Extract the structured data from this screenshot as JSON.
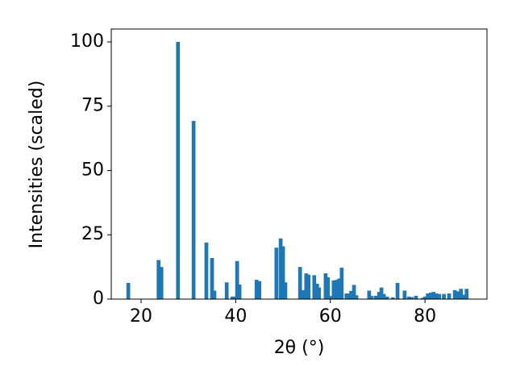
{
  "chart_data": {
    "type": "bar",
    "x_label": "2θ (°)",
    "y_label": "Intensities (scaled)",
    "color": "#1f77b4",
    "x": [
      17.3,
      23.7,
      24.3,
      27.8,
      31.1,
      33.8,
      35.0,
      35.5,
      38.1,
      39.3,
      39.9,
      40.3,
      40.8,
      44.4,
      45.0,
      48.6,
      49.5,
      50.0,
      50.5,
      53.6,
      54.4,
      54.9,
      55.4,
      56.6,
      57.2,
      57.6,
      59.0,
      59.5,
      60.2,
      60.7,
      61.4,
      61.9,
      62.4,
      63.4,
      63.9,
      64.4,
      65.0,
      65.5,
      68.2,
      68.7,
      69.6,
      70.3,
      70.8,
      71.3,
      72.0,
      73.2,
      74.2,
      75.7,
      76.6,
      77.2,
      78.1,
      79.5,
      80.0,
      80.6,
      81.2,
      81.8,
      82.4,
      83.0,
      84.0,
      85.1,
      86.3,
      86.9,
      87.6,
      88.2,
      88.8
    ],
    "values": [
      6.3,
      15.2,
      12.5,
      100,
      69.3,
      22,
      16,
      3.3,
      6.5,
      1,
      1,
      14.8,
      5.7,
      7.5,
      7,
      20,
      23.6,
      20.5,
      6.5,
      12.5,
      3.5,
      10,
      9.5,
      9.3,
      6,
      4.5,
      10,
      8.5,
      1.2,
      7.3,
      7.5,
      8,
      12.2,
      2.2,
      2.2,
      3.2,
      5.5,
      1.5,
      3.3,
      1.2,
      1.3,
      2.8,
      4.5,
      2,
      1,
      0.7,
      6.3,
      3.3,
      1,
      0.8,
      1.3,
      0.5,
      1,
      2.2,
      2.5,
      2.8,
      2.2,
      2,
      2,
      2.2,
      3.5,
      3,
      4,
      1.7,
      4
    ],
    "xlim": [
      13.7,
      93.1
    ],
    "xticks": [
      20,
      40,
      60,
      80
    ],
    "ylim": [
      0,
      105
    ],
    "yticks": [
      0,
      25,
      50,
      75,
      100
    ],
    "grid": false
  }
}
